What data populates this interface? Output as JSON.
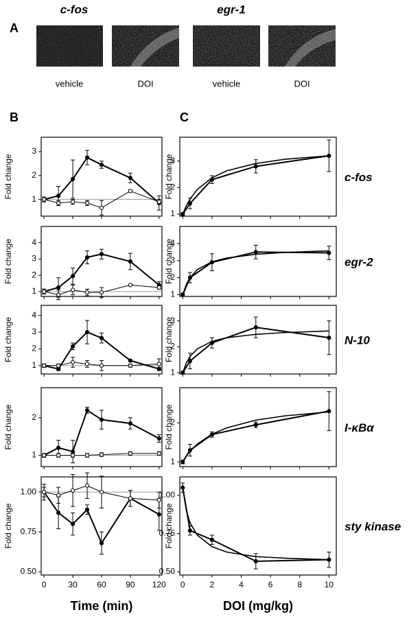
{
  "panels": [
    "A",
    "B",
    "C"
  ],
  "panel_a": {
    "genes": [
      "c-fos",
      "egr-1"
    ],
    "conditions": [
      "vehicle",
      "DOI",
      "vehicle",
      "DOI"
    ]
  },
  "chart_data": [
    {
      "type": "line",
      "y_label": "Fold change",
      "x": [
        0,
        15,
        30,
        45,
        60,
        90,
        120
      ],
      "xlim": [
        -3,
        123
      ],
      "xticks": [
        0,
        30,
        60,
        90,
        120
      ],
      "ylim": [
        0.3,
        3.6
      ],
      "yticks": [
        1,
        2,
        3
      ],
      "reference_line": 1,
      "series": [
        {
          "color": "#000000",
          "marker": "filled",
          "values": [
            1.0,
            1.15,
            1.85,
            2.75,
            2.45,
            1.9,
            0.85
          ],
          "errors": [
            0.1,
            0.4,
            0.8,
            0.3,
            0.15,
            0.2,
            0.3
          ]
        },
        {
          "color": "#000000",
          "marker": "open",
          "values": [
            1.0,
            0.85,
            0.9,
            0.85,
            0.65,
            1.35,
            0.9
          ],
          "errors": [
            0.1,
            0.1,
            0.1,
            0.1,
            0.3,
            0.05,
            0.1
          ]
        }
      ]
    },
    {
      "type": "line",
      "y_label": "Fold change",
      "x": [
        0,
        15,
        30,
        45,
        60,
        90,
        120
      ],
      "xlim": [
        -3,
        123
      ],
      "xticks": [
        0,
        30,
        60,
        90,
        120
      ],
      "ylim": [
        0.7,
        5.0
      ],
      "yticks": [
        1,
        2,
        3,
        4
      ],
      "reference_line": 1,
      "series": [
        {
          "color": "#000000",
          "marker": "filled",
          "values": [
            1.0,
            1.25,
            1.95,
            3.1,
            3.3,
            2.85,
            1.4
          ],
          "errors": [
            0.15,
            0.6,
            0.5,
            0.4,
            0.3,
            0.5,
            0.2
          ]
        },
        {
          "color": "#000000",
          "marker": "open",
          "values": [
            1.0,
            0.8,
            1.1,
            0.95,
            0.95,
            1.4,
            1.25
          ],
          "errors": [
            0.15,
            0.3,
            0.3,
            0.2,
            0.3,
            0.05,
            0.1
          ]
        }
      ]
    },
    {
      "type": "line",
      "y_label": "Fold change",
      "x": [
        0,
        15,
        30,
        45,
        60,
        90,
        120
      ],
      "xlim": [
        -3,
        123
      ],
      "xticks": [
        0,
        30,
        60,
        90,
        120
      ],
      "ylim": [
        0.5,
        4.6
      ],
      "yticks": [
        1,
        2,
        3,
        4
      ],
      "reference_line": 1,
      "series": [
        {
          "color": "#000000",
          "marker": "filled",
          "values": [
            1.0,
            0.8,
            2.15,
            3.0,
            2.65,
            1.3,
            0.8
          ],
          "errors": [
            0.1,
            0.1,
            0.2,
            0.7,
            0.3,
            0.05,
            0.1
          ]
        },
        {
          "color": "#000000",
          "marker": "open",
          "values": [
            1.0,
            1.0,
            1.2,
            1.1,
            1.0,
            1.0,
            1.1
          ],
          "errors": [
            0.1,
            0.1,
            0.3,
            0.2,
            0.3,
            0.1,
            0.3
          ]
        }
      ]
    },
    {
      "type": "line",
      "y_label": "Fold change",
      "x": [
        0,
        15,
        30,
        45,
        60,
        90,
        120
      ],
      "xlim": [
        -3,
        123
      ],
      "xticks": [
        0,
        30,
        60,
        90,
        120
      ],
      "ylim": [
        0.7,
        2.8
      ],
      "yticks": [
        1,
        2
      ],
      "reference_line": 1,
      "series": [
        {
          "color": "#000000",
          "marker": "filled",
          "values": [
            1.0,
            1.2,
            1.1,
            2.2,
            1.95,
            1.85,
            1.45
          ],
          "errors": [
            0.05,
            0.2,
            0.3,
            0.08,
            0.25,
            0.15,
            0.1
          ]
        },
        {
          "color": "#000000",
          "marker": "open",
          "values": [
            1.0,
            1.0,
            1.0,
            1.0,
            1.02,
            1.05,
            1.05
          ],
          "errors": [
            0.05,
            0.05,
            0.05,
            0.05,
            0.05,
            0.05,
            0.05
          ]
        }
      ]
    },
    {
      "type": "line",
      "y_label": "Fold change",
      "x_label": "Time (min)",
      "x": [
        0,
        15,
        30,
        45,
        60,
        90,
        120
      ],
      "xlim": [
        -3,
        123
      ],
      "xticks": [
        0,
        30,
        60,
        90,
        120
      ],
      "ylim": [
        0.48,
        1.095
      ],
      "yticks": [
        {
          "value": 0.5,
          "label": "0.50"
        },
        {
          "value": 0.75,
          "label": "0.75"
        },
        {
          "value": 1,
          "label": "1.00"
        }
      ],
      "reference_line": 1,
      "series": [
        {
          "color": "#000000",
          "marker": "filled",
          "values": [
            1.0,
            0.87,
            0.8,
            0.89,
            0.68,
            0.96,
            0.86
          ],
          "errors": [
            0.05,
            0.1,
            0.07,
            0.03,
            0.07,
            0.05,
            0.1
          ]
        },
        {
          "color": "#000000",
          "marker": "open",
          "values": [
            1.0,
            0.98,
            1.01,
            1.04,
            1.0,
            0.96,
            0.95
          ],
          "errors": [
            0.03,
            0.05,
            0.1,
            0.08,
            0.1,
            0.05,
            0.05
          ]
        }
      ]
    },
    {
      "type": "line",
      "title": "c-fos",
      "y_label": "Fold change",
      "x": [
        0,
        0.5,
        2,
        5,
        10
      ],
      "xlim": [
        -0.2,
        10.5
      ],
      "xticks": [
        0,
        2,
        4,
        6,
        8,
        10
      ],
      "ylim": [
        0.92,
        3.9
      ],
      "yticks": [
        1,
        2,
        3
      ],
      "series": [
        {
          "color": "#000000",
          "marker": "filled",
          "values": [
            1.0,
            1.4,
            2.3,
            2.8,
            3.2
          ],
          "errors": [
            0.05,
            0.2,
            0.15,
            0.25,
            0.6
          ]
        },
        {
          "color": "#000000",
          "marker": "none",
          "x": [
            0,
            0.25,
            0.5,
            1,
            2,
            3,
            5,
            7,
            10
          ],
          "values": [
            1.0,
            1.32,
            1.57,
            1.93,
            2.37,
            2.63,
            2.91,
            3.07,
            3.2
          ]
        }
      ]
    },
    {
      "type": "line",
      "title": "egr-2",
      "y_label": "Fold change",
      "x": [
        0,
        0.5,
        2,
        5,
        10
      ],
      "xlim": [
        -0.2,
        10.5
      ],
      "xticks": [
        0,
        2,
        4,
        6,
        8,
        10
      ],
      "ylim": [
        0.9,
        5.0
      ],
      "yticks": [
        1,
        2,
        3,
        4
      ],
      "series": [
        {
          "color": "#000000",
          "marker": "filled",
          "values": [
            1.0,
            2.0,
            2.9,
            3.5,
            3.45
          ],
          "errors": [
            0.1,
            0.3,
            0.5,
            0.4,
            0.4
          ]
        },
        {
          "color": "#000000",
          "marker": "none",
          "x": [
            0,
            0.25,
            0.5,
            1,
            2,
            3,
            5,
            7,
            10
          ],
          "values": [
            1.0,
            1.61,
            2.0,
            2.47,
            2.93,
            3.15,
            3.37,
            3.48,
            3.57
          ]
        }
      ]
    },
    {
      "type": "line",
      "title": "N-10",
      "y_label": "Fold change",
      "x": [
        0,
        0.5,
        2,
        5,
        10
      ],
      "xlim": [
        -0.2,
        10.5
      ],
      "xticks": [
        0,
        2,
        4,
        6,
        8,
        10
      ],
      "ylim": [
        0.95,
        3.6
      ],
      "yticks": [
        1,
        2,
        3
      ],
      "series": [
        {
          "color": "#000000",
          "marker": "filled",
          "values": [
            1.0,
            1.45,
            2.15,
            2.75,
            2.35
          ],
          "errors": [
            0.05,
            0.3,
            0.2,
            0.4,
            0.65
          ]
        },
        {
          "color": "#000000",
          "marker": "none",
          "x": [
            0,
            0.25,
            0.5,
            1,
            2,
            3,
            5,
            7,
            10
          ],
          "values": [
            1.0,
            1.38,
            1.63,
            1.92,
            2.21,
            2.35,
            2.48,
            2.55,
            2.61
          ]
        }
      ]
    },
    {
      "type": "line",
      "title": "I-κBα",
      "y_label": "Fold change",
      "x": [
        0,
        0.5,
        2,
        5,
        10
      ],
      "xlim": [
        -0.2,
        10.5
      ],
      "xticks": [
        0,
        2,
        4,
        6,
        8,
        10
      ],
      "ylim": [
        0.88,
        2.9
      ],
      "yticks": [
        1,
        2
      ],
      "series": [
        {
          "color": "#000000",
          "marker": "filled",
          "values": [
            1.0,
            1.3,
            1.7,
            1.95,
            2.3
          ],
          "errors": [
            0.05,
            0.15,
            0.07,
            0.07,
            0.5
          ]
        },
        {
          "color": "#000000",
          "marker": "none",
          "x": [
            0,
            0.25,
            0.5,
            1,
            2,
            3,
            5,
            7,
            10
          ],
          "values": [
            1.0,
            1.15,
            1.27,
            1.46,
            1.71,
            1.87,
            2.07,
            2.18,
            2.28
          ]
        }
      ]
    },
    {
      "type": "line",
      "title": "sty kinase",
      "y_label": "Fold change",
      "x_label": "DOI (mg/kg)",
      "x": [
        0,
        0.5,
        2,
        5,
        10
      ],
      "xlim": [
        -0.2,
        10.5
      ],
      "xticks": [
        0,
        2,
        4,
        6,
        8,
        10
      ],
      "ylim": [
        0.48,
        1.12
      ],
      "yticks": [
        {
          "value": 0.5,
          "label": "0.50"
        },
        {
          "value": 0.75,
          "label": "0.75"
        },
        {
          "value": 1,
          "label": "1.00"
        }
      ],
      "series": [
        {
          "color": "#000000",
          "marker": "filled",
          "values": [
            1.05,
            0.77,
            0.71,
            0.57,
            0.58
          ],
          "errors": [
            0.03,
            0.03,
            0.03,
            0.05,
            0.05
          ]
        },
        {
          "color": "#000000",
          "marker": "none",
          "x": [
            0,
            0.25,
            0.5,
            1,
            2,
            3,
            5,
            7,
            10
          ],
          "values": [
            1.05,
            0.9,
            0.82,
            0.74,
            0.665,
            0.63,
            0.6,
            0.59,
            0.58
          ]
        }
      ]
    }
  ]
}
